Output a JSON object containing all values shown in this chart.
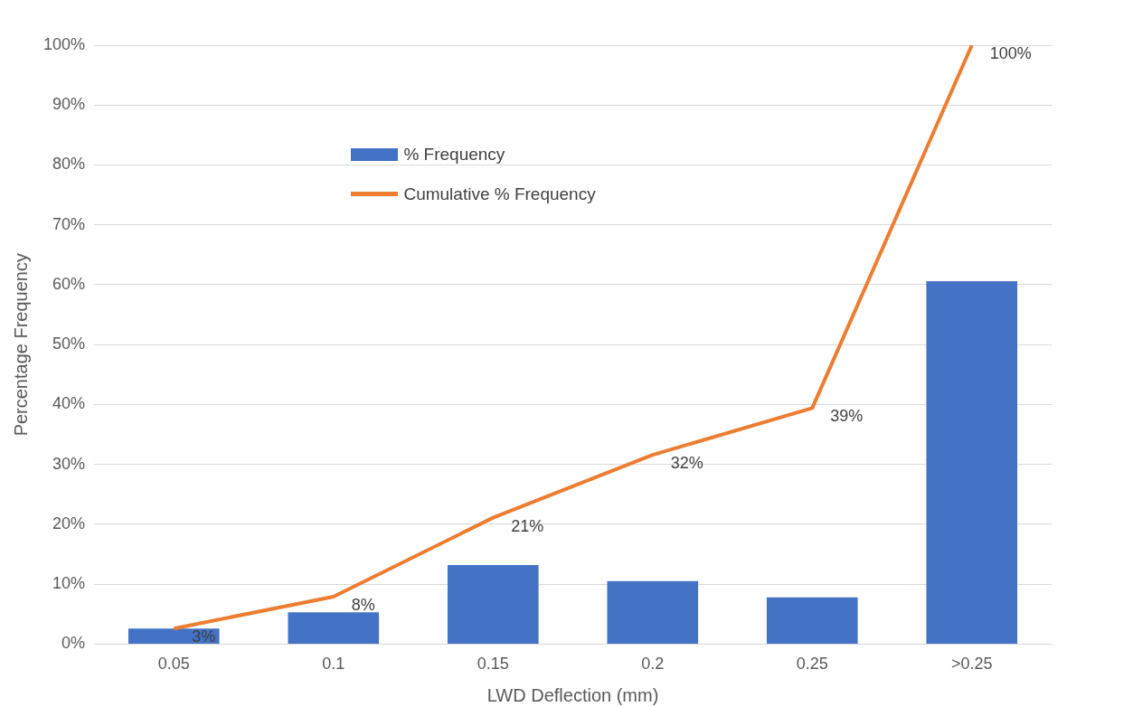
{
  "chart_data": {
    "type": "bar",
    "xlabel": "LWD Deflection (mm)",
    "ylabel": "Percentage Frequency",
    "categories": [
      "0.05",
      "0.1",
      "0.15",
      "0.2",
      "0.25",
      ">0.25"
    ],
    "series": [
      {
        "name": "% Frequency",
        "color": "#4472c4",
        "values": [
          2.6,
          5.3,
          13.2,
          10.5,
          7.8,
          60.6
        ]
      },
      {
        "name": "Cumulative % Frequency",
        "type": "line",
        "color": "#ed7d31",
        "marker": "none",
        "values": [
          2.6,
          7.9,
          21.1,
          31.6,
          39.4,
          100
        ],
        "value_labels": [
          "3%",
          "8%",
          "21%",
          "32%",
          "39%",
          "100%"
        ]
      }
    ],
    "ylim": [
      0,
      100
    ],
    "yticks": [
      {
        "value": 0,
        "label": "0%"
      },
      {
        "value": 10,
        "label": "10%"
      },
      {
        "value": 20,
        "label": "20%"
      },
      {
        "value": 30,
        "label": "30%"
      },
      {
        "value": 40,
        "label": "40%"
      },
      {
        "value": 50,
        "label": "50%"
      },
      {
        "value": 60,
        "label": "60%"
      },
      {
        "value": 70,
        "label": "70%"
      },
      {
        "value": 80,
        "label": "80%"
      },
      {
        "value": 90,
        "label": "90%"
      },
      {
        "value": 100,
        "label": "100%"
      }
    ],
    "grid": "y",
    "legend": "top left"
  }
}
